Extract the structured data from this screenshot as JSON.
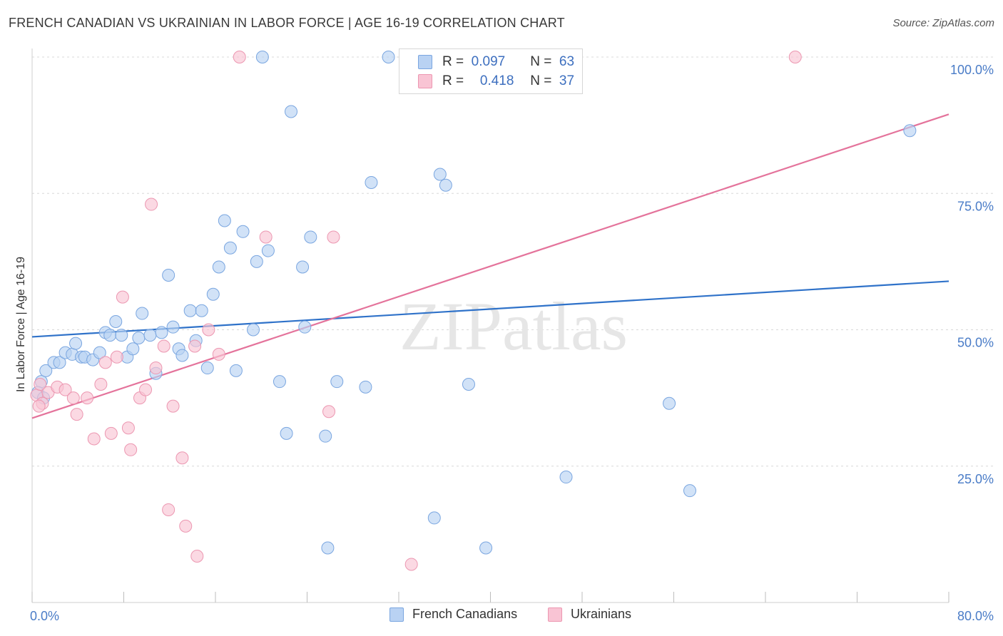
{
  "title": "FRENCH CANADIAN VS UKRAINIAN IN LABOR FORCE | AGE 16-19 CORRELATION CHART",
  "source": "Source: ZipAtlas.com",
  "watermark": "ZIPatlas",
  "legend": {
    "rows": [
      {
        "r_label": "R =",
        "r_value": "0.097",
        "n_label": "N =",
        "n_value": "63",
        "color": "#9ec0ee"
      },
      {
        "r_label": "R =",
        "r_value": "0.418",
        "n_label": "N =",
        "n_value": "37",
        "color": "#f6b3c8"
      }
    ]
  },
  "bottom_legend": {
    "french": "French Canadians",
    "ukrainian": "Ukrainians"
  },
  "colors": {
    "blue_fill": "#b9d2f3",
    "blue_stroke": "#7aa6e0",
    "blue_line": "#2f72c9",
    "pink_fill": "#f9c4d4",
    "pink_stroke": "#ec97b1",
    "pink_line": "#e4739b",
    "tick_text": "#4a7cc7",
    "grid": "#d8d8d8"
  },
  "chart_data": {
    "type": "scatter",
    "title": "FRENCH CANADIAN VS UKRAINIAN IN LABOR FORCE | AGE 16-19 CORRELATION CHART",
    "xlabel": "",
    "ylabel": "In Labor Force | Age 16-19",
    "xlim": [
      0,
      80
    ],
    "ylim": [
      0,
      100
    ],
    "x_tick_labels": [
      "0.0%",
      "80.0%"
    ],
    "y_ticks": [
      25,
      50,
      75,
      100
    ],
    "y_tick_labels": [
      "25.0%",
      "50.0%",
      "75.0%",
      "100.0%"
    ],
    "series": [
      {
        "name": "French Canadians",
        "r": 0.097,
        "n": 63,
        "trend": {
          "x": [
            0,
            80
          ],
          "y": [
            48.7,
            58.9
          ]
        },
        "points": [
          [
            0.8,
            40.5
          ],
          [
            1.2,
            42.5
          ],
          [
            1.9,
            44
          ],
          [
            2.4,
            44
          ],
          [
            2.9,
            45.8
          ],
          [
            3.5,
            45.5
          ],
          [
            3.8,
            47.5
          ],
          [
            4.3,
            45
          ],
          [
            4.6,
            45
          ],
          [
            5.3,
            44.5
          ],
          [
            5.9,
            45.8
          ],
          [
            6.4,
            49.5
          ],
          [
            6.8,
            49
          ],
          [
            7.3,
            51.5
          ],
          [
            7.8,
            49
          ],
          [
            8.3,
            45
          ],
          [
            8.8,
            46.5
          ],
          [
            9.3,
            48.5
          ],
          [
            9.6,
            53
          ],
          [
            10.3,
            49
          ],
          [
            10.8,
            42
          ],
          [
            11.3,
            49.5
          ],
          [
            11.9,
            60
          ],
          [
            12.3,
            50.5
          ],
          [
            12.8,
            46.5
          ],
          [
            13.1,
            45.3
          ],
          [
            13.8,
            53.5
          ],
          [
            14.3,
            48
          ],
          [
            14.8,
            53.5
          ],
          [
            15.3,
            43
          ],
          [
            15.8,
            56.5
          ],
          [
            16.3,
            61.5
          ],
          [
            16.8,
            70
          ],
          [
            17.3,
            65
          ],
          [
            17.8,
            42.5
          ],
          [
            18.4,
            68
          ],
          [
            19.3,
            50
          ],
          [
            19.6,
            62.5
          ],
          [
            20.1,
            100
          ],
          [
            20.6,
            64.5
          ],
          [
            21.6,
            40.5
          ],
          [
            22.2,
            31
          ],
          [
            22.6,
            90
          ],
          [
            23.6,
            61.5
          ],
          [
            23.8,
            50.5
          ],
          [
            24.3,
            67
          ],
          [
            25.6,
            30.5
          ],
          [
            25.8,
            10
          ],
          [
            26.6,
            40.5
          ],
          [
            29.1,
            39.5
          ],
          [
            29.6,
            77
          ],
          [
            31.1,
            100
          ],
          [
            35.1,
            15.5
          ],
          [
            35.6,
            78.5
          ],
          [
            36.1,
            76.5
          ],
          [
            38.1,
            40
          ],
          [
            39.6,
            10
          ],
          [
            46.6,
            23
          ],
          [
            55.6,
            36.5
          ],
          [
            57.4,
            20.5
          ],
          [
            76.6,
            86.5
          ],
          [
            0.5,
            38.5
          ],
          [
            1.0,
            37.5
          ]
        ]
      },
      {
        "name": "Ukrainians",
        "r": 0.418,
        "n": 37,
        "trend": {
          "x": [
            0,
            80
          ],
          "y": [
            33.8,
            89.5
          ]
        },
        "points": [
          [
            0.4,
            38
          ],
          [
            0.7,
            40
          ],
          [
            0.9,
            36.5
          ],
          [
            1.4,
            38.5
          ],
          [
            2.2,
            39.5
          ],
          [
            2.9,
            39
          ],
          [
            3.6,
            37.5
          ],
          [
            3.9,
            34.5
          ],
          [
            4.8,
            37.5
          ],
          [
            5.4,
            30
          ],
          [
            6.0,
            40
          ],
          [
            6.4,
            44
          ],
          [
            6.9,
            31
          ],
          [
            7.4,
            45
          ],
          [
            7.9,
            56
          ],
          [
            8.4,
            32
          ],
          [
            8.6,
            28
          ],
          [
            9.4,
            37.5
          ],
          [
            9.9,
            39
          ],
          [
            10.4,
            73
          ],
          [
            10.8,
            43
          ],
          [
            11.5,
            47
          ],
          [
            11.9,
            17
          ],
          [
            12.3,
            36
          ],
          [
            13.1,
            26.5
          ],
          [
            13.4,
            14
          ],
          [
            14.2,
            47
          ],
          [
            14.4,
            8.5
          ],
          [
            15.4,
            50
          ],
          [
            16.3,
            45.5
          ],
          [
            18.1,
            100
          ],
          [
            20.4,
            67
          ],
          [
            25.9,
            35
          ],
          [
            26.3,
            67
          ],
          [
            33.1,
            7
          ],
          [
            66.6,
            100
          ],
          [
            0.6,
            36
          ]
        ]
      }
    ]
  }
}
